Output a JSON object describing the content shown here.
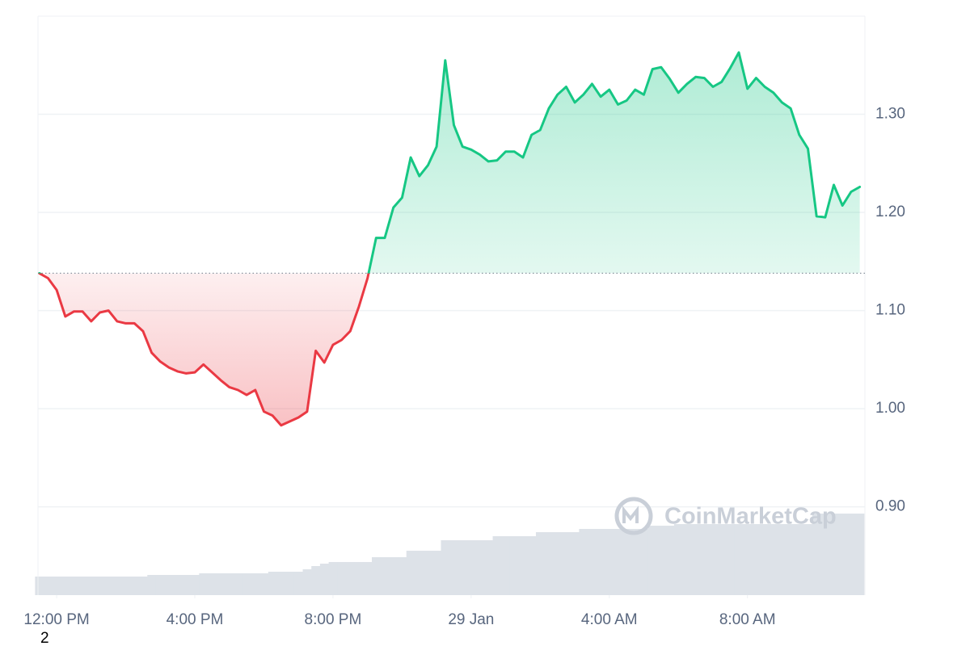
{
  "chart_data": {
    "type": "line",
    "up_color": "#16c784",
    "down_color": "#ea3943",
    "volume_color": "#dde2e8",
    "grid": true,
    "baseline": 1.138,
    "xlim": [
      -0.54,
      23.4
    ],
    "ylim": [
      0.81,
      1.4
    ],
    "volume_ylim": [
      0,
      101
    ],
    "xticks": [
      {
        "value": 0,
        "label": "12:00 PM"
      },
      {
        "value": 4,
        "label": "4:00 PM"
      },
      {
        "value": 8,
        "label": "8:00 PM"
      },
      {
        "value": 12,
        "label": "29 Jan"
      },
      {
        "value": 16,
        "label": "4:00 AM"
      },
      {
        "value": 20,
        "label": "8:00 AM"
      }
    ],
    "yticks": [
      {
        "value": 0.9,
        "label": "0.90"
      },
      {
        "value": 1.0,
        "label": "1.00"
      },
      {
        "value": 1.1,
        "label": "1.10"
      },
      {
        "value": 1.2,
        "label": "1.20"
      },
      {
        "value": 1.3,
        "label": "1.30"
      }
    ],
    "x": [
      -0.5,
      -0.25,
      0,
      0.25,
      0.5,
      0.75,
      1,
      1.25,
      1.5,
      1.75,
      2,
      2.25,
      2.5,
      2.75,
      3,
      3.25,
      3.5,
      3.75,
      4,
      4.25,
      4.5,
      4.75,
      5,
      5.25,
      5.5,
      5.75,
      6,
      6.25,
      6.5,
      6.75,
      7,
      7.25,
      7.5,
      7.75,
      8,
      8.25,
      8.5,
      8.75,
      9,
      9.25,
      9.5,
      9.75,
      10,
      10.25,
      10.5,
      10.75,
      11,
      11.25,
      11.5,
      11.75,
      12,
      12.25,
      12.5,
      12.75,
      13,
      13.25,
      13.5,
      13.75,
      14,
      14.25,
      14.5,
      14.75,
      15,
      15.25,
      15.5,
      15.75,
      16,
      16.25,
      16.5,
      16.75,
      17,
      17.25,
      17.5,
      17.75,
      18,
      18.25,
      18.5,
      18.75,
      19,
      19.25,
      19.5,
      19.75,
      20,
      20.25,
      20.5,
      20.75,
      21,
      21.25,
      21.5,
      21.75,
      22,
      22.25,
      22.5,
      22.75,
      23,
      23.25
    ],
    "values": [
      1.138,
      1.133,
      1.121,
      1.094,
      1.099,
      1.099,
      1.089,
      1.098,
      1.1,
      1.089,
      1.087,
      1.087,
      1.079,
      1.057,
      1.048,
      1.042,
      1.038,
      1.036,
      1.037,
      1.045,
      1.037,
      1.029,
      1.022,
      1.019,
      1.014,
      1.019,
      0.997,
      0.993,
      0.983,
      0.987,
      0.991,
      0.997,
      1.059,
      1.047,
      1.065,
      1.07,
      1.079,
      1.104,
      1.133,
      1.174,
      1.174,
      1.205,
      1.215,
      1.256,
      1.237,
      1.248,
      1.267,
      1.355,
      1.289,
      1.267,
      1.264,
      1.259,
      1.252,
      1.253,
      1.262,
      1.262,
      1.256,
      1.279,
      1.284,
      1.306,
      1.32,
      1.328,
      1.312,
      1.32,
      1.331,
      1.318,
      1.325,
      1.31,
      1.314,
      1.325,
      1.32,
      1.346,
      1.348,
      1.336,
      1.322,
      1.331,
      1.338,
      1.337,
      1.328,
      1.333,
      1.347,
      1.363,
      1.326,
      1.337,
      1.328,
      1.322,
      1.312,
      1.306,
      1.279,
      1.265,
      1.196,
      1.195,
      1.228,
      1.207,
      1.221,
      1.226
    ],
    "volume": [
      23,
      23,
      23,
      23,
      23,
      23,
      23,
      23,
      23,
      23,
      23,
      23,
      23,
      25,
      25,
      25,
      25,
      25,
      25,
      27,
      27,
      27,
      27,
      27,
      27,
      27,
      27,
      29,
      29,
      29,
      29,
      32,
      36,
      39,
      41,
      41,
      41,
      41,
      41,
      47,
      47,
      47,
      47,
      55,
      55,
      55,
      55,
      68,
      68,
      68,
      68,
      68,
      68,
      73,
      73,
      73,
      73,
      73,
      78,
      78,
      78,
      78,
      78,
      82,
      82,
      82,
      82,
      82,
      82,
      82,
      82,
      86,
      86,
      86,
      88,
      88,
      88,
      88,
      88,
      88,
      88,
      88,
      88,
      88,
      88,
      88,
      88,
      88,
      88,
      88,
      101,
      101,
      101,
      101,
      101,
      101
    ],
    "watermark": "CoinMarketCap",
    "footnote": "2"
  }
}
